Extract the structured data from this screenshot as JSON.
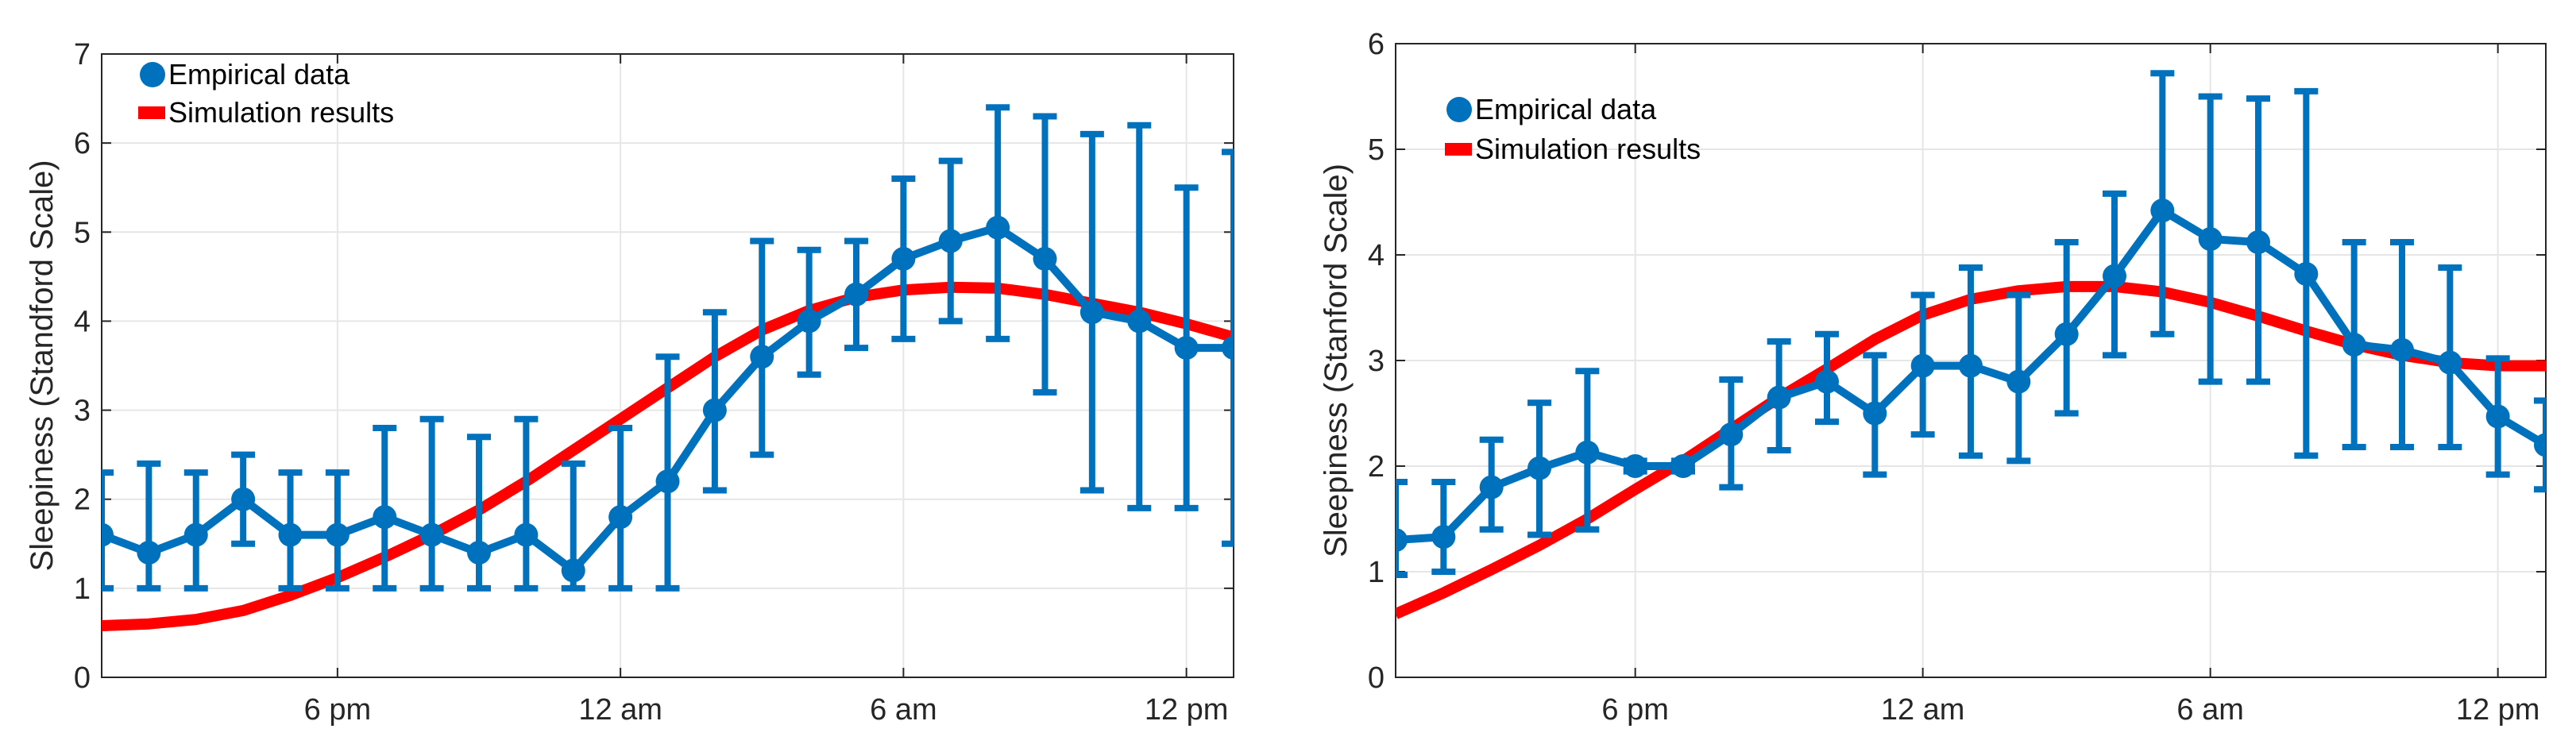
{
  "colors": {
    "empirical": "#0072BD",
    "simulation": "#FF0000",
    "grid": "#E6E6E6",
    "axis": "#262626"
  },
  "chart_data": [
    {
      "type": "line",
      "ylabel": "Sleepiness (Standford Scale)",
      "xlabel": "",
      "xlim": [
        0,
        24
      ],
      "ylim": [
        0,
        7
      ],
      "xticks": [
        {
          "x": 5,
          "label": "6 pm"
        },
        {
          "x": 11,
          "label": "12 am"
        },
        {
          "x": 17,
          "label": "6 am"
        },
        {
          "x": 23,
          "label": "12 pm"
        }
      ],
      "yticks": [
        0,
        1,
        2,
        3,
        4,
        5,
        6,
        7
      ],
      "grid": true,
      "legend": "top-left",
      "series": [
        {
          "name": "Empirical data",
          "style": "line-markers-errorbars",
          "x": [
            0,
            1,
            2,
            3,
            4,
            5,
            6,
            7,
            8,
            9,
            10,
            11,
            12,
            13,
            14,
            15,
            16,
            17,
            18,
            19,
            20,
            21,
            22,
            23,
            24
          ],
          "y": [
            1.6,
            1.4,
            1.6,
            2.0,
            1.6,
            1.6,
            1.8,
            1.6,
            1.4,
            1.6,
            1.2,
            1.8,
            2.2,
            3.0,
            3.6,
            4.0,
            4.3,
            4.7,
            4.9,
            5.05,
            4.7,
            4.1,
            4.0,
            3.7,
            3.7
          ],
          "err_low": [
            1.0,
            1.0,
            1.0,
            1.5,
            1.0,
            1.0,
            1.0,
            1.0,
            1.0,
            1.0,
            1.0,
            1.0,
            1.0,
            2.1,
            2.5,
            3.4,
            3.7,
            3.8,
            4.0,
            3.8,
            3.2,
            2.1,
            1.9,
            1.9,
            1.5
          ],
          "err_high": [
            2.3,
            2.4,
            2.3,
            2.5,
            2.3,
            2.3,
            2.8,
            2.9,
            2.7,
            2.9,
            2.4,
            2.8,
            3.6,
            4.1,
            4.9,
            4.8,
            4.9,
            5.6,
            5.8,
            6.4,
            6.3,
            6.1,
            6.2,
            5.5,
            5.9
          ]
        },
        {
          "name": "Simulation results",
          "style": "line",
          "x": [
            0,
            1,
            2,
            3,
            4,
            5,
            6,
            7,
            8,
            9,
            10,
            11,
            12,
            13,
            14,
            15,
            16,
            17,
            18,
            19,
            20,
            21,
            22,
            23,
            24
          ],
          "y": [
            0.58,
            0.6,
            0.65,
            0.75,
            0.92,
            1.12,
            1.35,
            1.6,
            1.88,
            2.2,
            2.55,
            2.9,
            3.25,
            3.6,
            3.9,
            4.12,
            4.27,
            4.35,
            4.38,
            4.37,
            4.3,
            4.2,
            4.1,
            3.97,
            3.82
          ]
        }
      ]
    },
    {
      "type": "line",
      "ylabel": "Sleepiness (Stanford Scale)",
      "xlabel": "",
      "xlim": [
        0,
        24
      ],
      "ylim": [
        0,
        6
      ],
      "xticks": [
        {
          "x": 5,
          "label": "6 pm"
        },
        {
          "x": 11,
          "label": "12 am"
        },
        {
          "x": 17,
          "label": "6 am"
        },
        {
          "x": 23,
          "label": "12 pm"
        }
      ],
      "yticks": [
        0,
        1,
        2,
        3,
        4,
        5,
        6
      ],
      "grid": true,
      "legend": "top-left",
      "series": [
        {
          "name": "Empirical data",
          "style": "line-markers-errorbars",
          "x": [
            0,
            1,
            2,
            3,
            4,
            5,
            6,
            7,
            8,
            9,
            10,
            11,
            12,
            13,
            14,
            15,
            16,
            17,
            18,
            19,
            20,
            21,
            22,
            23,
            24
          ],
          "y": [
            1.3,
            1.33,
            1.8,
            1.98,
            2.13,
            2.0,
            2.0,
            2.3,
            2.65,
            2.8,
            2.5,
            2.95,
            2.95,
            2.8,
            3.25,
            3.8,
            4.42,
            4.15,
            4.12,
            3.82,
            3.15,
            3.1,
            2.98,
            2.47,
            2.2
          ],
          "err_low": [
            0.97,
            1.0,
            1.4,
            1.35,
            1.4,
            1.95,
            1.95,
            1.8,
            2.15,
            2.42,
            1.92,
            2.3,
            2.1,
            2.05,
            2.5,
            3.05,
            3.25,
            2.8,
            2.8,
            2.1,
            2.18,
            2.18,
            2.18,
            1.92,
            1.78
          ],
          "err_high": [
            1.85,
            1.85,
            2.25,
            2.6,
            2.9,
            2.05,
            2.05,
            2.82,
            3.18,
            3.25,
            3.05,
            3.62,
            3.88,
            3.62,
            4.12,
            4.58,
            5.72,
            5.5,
            5.48,
            5.55,
            4.12,
            4.12,
            3.88,
            3.02,
            2.62
          ]
        },
        {
          "name": "Simulation results",
          "style": "line",
          "x": [
            0,
            1,
            2,
            3,
            4,
            5,
            6,
            7,
            8,
            9,
            10,
            11,
            12,
            13,
            14,
            15,
            16,
            17,
            18,
            19,
            20,
            21,
            22,
            23,
            24
          ],
          "y": [
            0.6,
            0.8,
            1.02,
            1.25,
            1.5,
            1.78,
            2.05,
            2.35,
            2.65,
            2.92,
            3.2,
            3.43,
            3.58,
            3.66,
            3.7,
            3.7,
            3.65,
            3.55,
            3.42,
            3.28,
            3.15,
            3.05,
            2.98,
            2.95,
            2.95
          ]
        }
      ]
    }
  ]
}
